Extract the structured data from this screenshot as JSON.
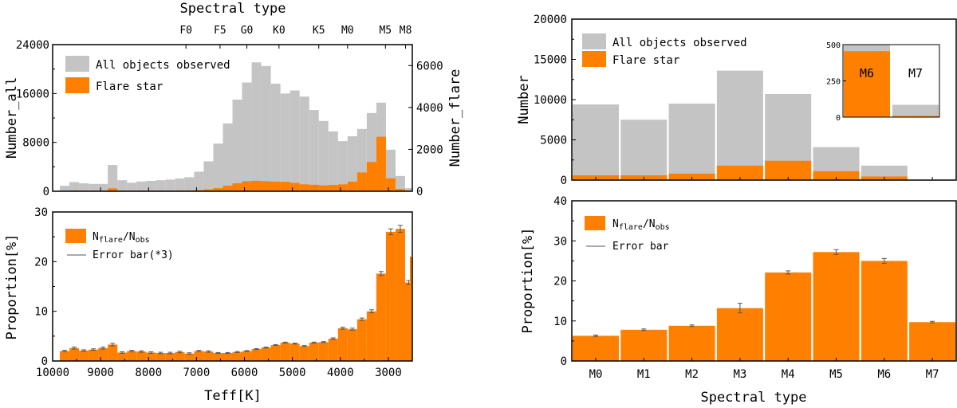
{
  "colors": {
    "gray": "#c4c4c4",
    "orange": "#ff8000",
    "frame": "#000000",
    "errbar": "#555555"
  },
  "chart_data": [
    {
      "id": "left-top",
      "type": "bar",
      "xlabel": "",
      "top_axis_label": "Spectral type",
      "top_ticks": [
        {
          "label": "F0",
          "teff": 7220
        },
        {
          "label": "F5",
          "teff": 6510
        },
        {
          "label": "G0",
          "teff": 5950
        },
        {
          "label": "K0",
          "teff": 5280
        },
        {
          "label": "K5",
          "teff": 4450
        },
        {
          "label": "M0",
          "teff": 3850
        },
        {
          "label": "M5",
          "teff": 3060
        },
        {
          "label": "M8",
          "teff": 2640
        }
      ],
      "ylabel_left": "Number_all",
      "ylabel_right": "Number_flare",
      "xlim": [
        10000,
        2500
      ],
      "ylim_left": [
        0,
        24000
      ],
      "ylim_right": [
        0,
        7000
      ],
      "yticks_left": [
        "0",
        "8000",
        "16000",
        "24000"
      ],
      "yticks_right": [
        "0",
        "2000",
        "4000",
        "6000"
      ],
      "legend_position": "top-left",
      "series": [
        {
          "name": "All objects observed",
          "color": "gray",
          "axis": "left",
          "x": [
            9750,
            9550,
            9350,
            9150,
            8950,
            8750,
            8550,
            8350,
            8150,
            7950,
            7750,
            7550,
            7350,
            7150,
            6950,
            6750,
            6550,
            6350,
            6150,
            5950,
            5750,
            5550,
            5350,
            5150,
            4950,
            4750,
            4550,
            4350,
            4150,
            3950,
            3750,
            3550,
            3350,
            3150,
            2950,
            2750,
            2550
          ],
          "values": [
            900,
            1500,
            1300,
            1200,
            1200,
            4300,
            1800,
            1400,
            1600,
            1700,
            1800,
            1900,
            2100,
            2300,
            3200,
            4900,
            7800,
            11100,
            15000,
            17800,
            21100,
            20500,
            17600,
            16000,
            16500,
            15500,
            13300,
            11500,
            9800,
            8200,
            9000,
            10200,
            12800,
            14500,
            6800,
            2500,
            500
          ]
        },
        {
          "name": "Flare star",
          "color": "orange",
          "axis": "right",
          "x": [
            9750,
            9550,
            9350,
            9150,
            8950,
            8750,
            8550,
            8350,
            8150,
            7950,
            7750,
            7550,
            7350,
            7150,
            6950,
            6750,
            6550,
            6350,
            6150,
            5950,
            5750,
            5550,
            5350,
            5150,
            4950,
            4750,
            4550,
            4350,
            4150,
            3950,
            3750,
            3550,
            3350,
            3150,
            2950,
            2750,
            2550
          ],
          "values": [
            20,
            40,
            30,
            30,
            30,
            140,
            30,
            30,
            30,
            30,
            30,
            30,
            40,
            40,
            50,
            90,
            150,
            270,
            380,
            480,
            500,
            480,
            460,
            450,
            400,
            330,
            310,
            280,
            300,
            330,
            460,
            900,
            1400,
            2600,
            620,
            110,
            30
          ]
        }
      ]
    },
    {
      "id": "left-bottom",
      "type": "bar",
      "xlabel": "Teff[K]",
      "ylabel": "Proportion[%]",
      "xlim": [
        10000,
        2500
      ],
      "ylim": [
        0,
        30
      ],
      "xticks": [
        "10000",
        "9000",
        "8000",
        "7000",
        "6000",
        "5000",
        "4000",
        "3000"
      ],
      "yticks": [
        "0",
        "10",
        "20",
        "30"
      ],
      "legend_position": "top-left",
      "legend": {
        "entry1_main": "N",
        "entry1_sub": "flare",
        "entry1_mid": "/N",
        "entry1_sub2": "obs",
        "entry2": "Error bar(*3)"
      },
      "series": [
        {
          "name": "Nflare/Nobs",
          "color": "orange",
          "x": [
            9750,
            9550,
            9350,
            9150,
            8950,
            8750,
            8550,
            8350,
            8150,
            7950,
            7750,
            7550,
            7350,
            7150,
            6950,
            6750,
            6550,
            6350,
            6150,
            5950,
            5750,
            5550,
            5350,
            5150,
            4950,
            4750,
            4550,
            4350,
            4150,
            3950,
            3750,
            3550,
            3350,
            3150,
            2950,
            2750,
            2550
          ],
          "values": [
            2.0,
            2.6,
            2.1,
            2.3,
            2.6,
            3.3,
            1.7,
            2.0,
            1.9,
            1.7,
            1.6,
            1.6,
            1.8,
            1.5,
            2.0,
            1.9,
            1.6,
            1.6,
            1.8,
            2.0,
            2.4,
            2.7,
            3.2,
            3.7,
            3.5,
            3.0,
            3.7,
            3.8,
            4.5,
            6.6,
            6.4,
            8.4,
            10.0,
            17.6,
            26.0,
            26.6,
            15.8
          ],
          "errors": [
            0.15,
            0.2,
            0.15,
            0.15,
            0.2,
            0.25,
            0.15,
            0.15,
            0.15,
            0.15,
            0.15,
            0.15,
            0.15,
            0.15,
            0.15,
            0.15,
            0.1,
            0.1,
            0.1,
            0.1,
            0.1,
            0.1,
            0.1,
            0.1,
            0.1,
            0.1,
            0.1,
            0.1,
            0.15,
            0.2,
            0.2,
            0.25,
            0.3,
            0.4,
            0.6,
            0.7,
            0.4
          ]
        }
      ],
      "edge_value": 21.0
    },
    {
      "id": "right-top",
      "type": "bar",
      "ylabel": "Number",
      "ylim": [
        0,
        20000
      ],
      "yticks": [
        "0",
        "5000",
        "10000",
        "15000",
        "20000"
      ],
      "categories": [
        "M0",
        "M1",
        "M2",
        "M3",
        "M4",
        "M5",
        "M6",
        "M7"
      ],
      "legend_position": "top-left",
      "series": [
        {
          "name": "All objects observed",
          "color": "gray",
          "values": [
            9400,
            7500,
            9500,
            13600,
            10700,
            4100,
            1800,
            0
          ]
        },
        {
          "name": "Flare star",
          "color": "orange",
          "values": [
            600,
            600,
            800,
            1800,
            2400,
            1100,
            450,
            0
          ]
        }
      ],
      "inset": {
        "categories": [
          "M6",
          "M7"
        ],
        "ylim": [
          0,
          500
        ],
        "yticks": [
          "0",
          "250",
          "500"
        ],
        "all": [
          500,
          85
        ],
        "flare": [
          455,
          8
        ]
      }
    },
    {
      "id": "right-bottom",
      "type": "bar",
      "xlabel": "Spectral type",
      "ylabel": "Proportion[%]",
      "ylim": [
        0,
        40
      ],
      "yticks": [
        "0",
        "10",
        "20",
        "30",
        "40"
      ],
      "categories": [
        "M0",
        "M1",
        "M2",
        "M3",
        "M4",
        "M5",
        "M6",
        "M7"
      ],
      "legend_position": "top-left",
      "legend": {
        "entry1_main": "N",
        "entry1_sub": "flare",
        "entry1_mid": "/N",
        "entry1_sub2": "obs",
        "entry2": "Error bar"
      },
      "series": [
        {
          "name": "Nflare/Nobs",
          "color": "orange",
          "values": [
            6.3,
            7.8,
            8.8,
            13.2,
            22.1,
            27.2,
            25.0,
            9.7
          ],
          "errors": [
            0.2,
            0.2,
            0.2,
            1.2,
            0.4,
            0.6,
            0.6,
            0.2
          ]
        }
      ]
    }
  ]
}
